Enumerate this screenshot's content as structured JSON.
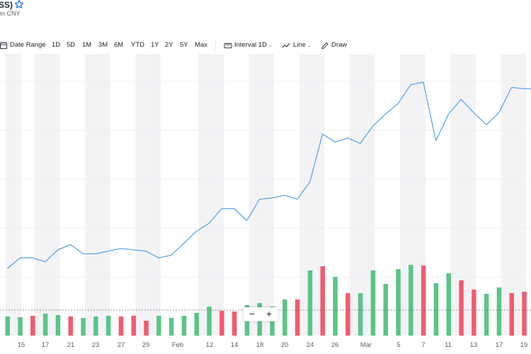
{
  "header": {
    "title": "SS)",
    "subtitle": "in CNY",
    "star_icon": "star-outline-icon"
  },
  "toolbar": {
    "date_range_label": "Date Range",
    "ranges": [
      "1D",
      "5D",
      "1M",
      "3M",
      "6M",
      "YTD",
      "1Y",
      "2Y",
      "5Y",
      "Max"
    ],
    "interval_label": "Interval",
    "interval_value": "1D",
    "line_label": "Line",
    "draw_label": "Draw"
  },
  "zoom": {
    "minus": "−",
    "plus": "+"
  },
  "colors": {
    "line": "#61a6e8",
    "up": "#5bc489",
    "down": "#f25b72",
    "band": "#f3f3f5"
  },
  "chart_data": {
    "type": "line",
    "x_tick_labels": [
      "15",
      "17",
      "21",
      "23",
      "27",
      "29",
      "Feb",
      "12",
      "14",
      "18",
      "20",
      "24",
      "26",
      "Mar",
      "5",
      "7",
      "11",
      "13",
      "17",
      "19"
    ],
    "dates": [
      "Jan 11",
      "Jan 12",
      "Jan 15",
      "Jan 16",
      "Jan 17",
      "Jan 18",
      "Jan 19",
      "Jan 22",
      "Jan 23",
      "Jan 24",
      "Jan 25",
      "Jan 26",
      "Jan 29",
      "Jan 30",
      "Jan 31",
      "Feb 1",
      "Feb 2",
      "Feb 5",
      "Feb 6",
      "Feb 7",
      "Feb 8",
      "Feb 19",
      "Feb 20",
      "Feb 21",
      "Feb 22",
      "Feb 23",
      "Feb 26",
      "Feb 27",
      "Feb 28",
      "Feb 29",
      "Mar 1",
      "Mar 4",
      "Mar 5",
      "Mar 6",
      "Mar 7",
      "Mar 8",
      "Mar 11",
      "Mar 12",
      "Mar 13",
      "Mar 14",
      "Mar 15",
      "Mar 18",
      "Mar 19",
      "Mar 20"
    ],
    "price": [
      10,
      18,
      18,
      15,
      24,
      28,
      21,
      21,
      23,
      25,
      24,
      23,
      18,
      20,
      29,
      38,
      44,
      55,
      55,
      46,
      62,
      63,
      65,
      62,
      75,
      111,
      105,
      108,
      104,
      117,
      126,
      134,
      148,
      150,
      106,
      126,
      137,
      127,
      118,
      127,
      146,
      145,
      145,
      148
    ],
    "volume": [
      27,
      26,
      28,
      31,
      29,
      27,
      25,
      27,
      28,
      27,
      28,
      21,
      28,
      25,
      28,
      32,
      41,
      35,
      34,
      43,
      46,
      41,
      51,
      51,
      92,
      98,
      83,
      60,
      60,
      92,
      73,
      94,
      100,
      99,
      74,
      88,
      78,
      65,
      59,
      68,
      60,
      62,
      52,
      60
    ],
    "direction": [
      "up",
      "up",
      "down",
      "up",
      "up",
      "down",
      "up",
      "up",
      "up",
      "down",
      "down",
      "down",
      "up",
      "up",
      "up",
      "up",
      "up",
      "down",
      "down",
      "up",
      "up",
      "up",
      "up",
      "down",
      "up",
      "down",
      "up",
      "down",
      "up",
      "up",
      "up",
      "up",
      "up",
      "down",
      "up",
      "up",
      "down",
      "down",
      "up",
      "up",
      "down",
      "down",
      "up",
      "up"
    ],
    "gridlines": true
  }
}
